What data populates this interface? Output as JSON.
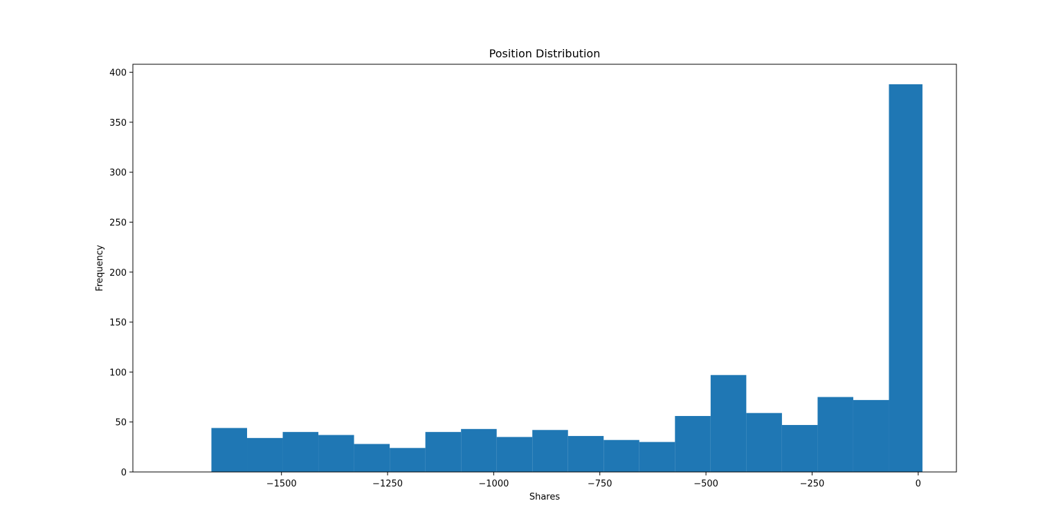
{
  "chart_data": {
    "type": "bar",
    "title": "Position Distribution",
    "xlabel": "Shares",
    "ylabel": "Frequency",
    "xlim": [
      -1850,
      90
    ],
    "ylim": [
      0,
      408
    ],
    "x_ticks": [
      -1500,
      -1250,
      -1000,
      -750,
      -500,
      -250,
      0
    ],
    "x_tick_labels": [
      "−1500",
      "−1250",
      "−1000",
      "−750",
      "−500",
      "−250",
      "0"
    ],
    "y_ticks": [
      0,
      50,
      100,
      150,
      200,
      250,
      300,
      350,
      400
    ],
    "y_tick_labels": [
      "0",
      "50",
      "100",
      "150",
      "200",
      "250",
      "300",
      "350",
      "400"
    ],
    "grid": false,
    "bin_edges": [
      -1665,
      -1581,
      -1497,
      -1413,
      -1329,
      -1245,
      -1161,
      -1077,
      -993,
      -909,
      -825,
      -741,
      -657,
      -573,
      -489,
      -405,
      -321,
      -237,
      -153,
      -69,
      10
    ],
    "values": [
      44,
      34,
      40,
      37,
      28,
      24,
      40,
      43,
      35,
      42,
      36,
      32,
      30,
      56,
      97,
      59,
      47,
      75,
      72,
      388
    ],
    "bar_color": "#1f77b4"
  }
}
